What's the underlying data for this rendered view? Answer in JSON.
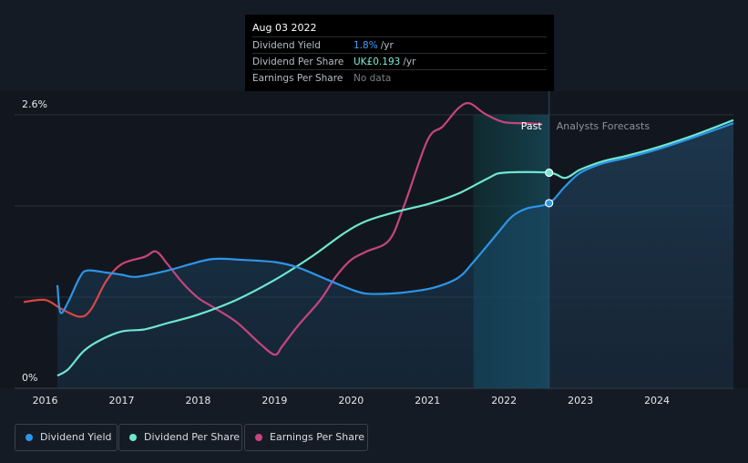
{
  "tooltip": {
    "date": "Aug 03 2022",
    "rows": [
      {
        "label": "Dividend Yield",
        "value": "1.8%",
        "unit": "/yr",
        "color": "#3aa0ff"
      },
      {
        "label": "Dividend Per Share",
        "value": "UK£0.193",
        "unit": "/yr",
        "color": "#7df0d6"
      },
      {
        "label": "Earnings Per Share",
        "value": "No data",
        "unit": "",
        "color": "#7a7f88"
      }
    ]
  },
  "legend": [
    {
      "label": "Dividend Yield",
      "color": "#2d95e8"
    },
    {
      "label": "Dividend Per Share",
      "color": "#6fe7cf"
    },
    {
      "label": "Earnings Per Share",
      "color": "#c7447f"
    }
  ],
  "chart_data": {
    "type": "line",
    "y_axis": {
      "min_label": "0%",
      "max_label": "2.6%",
      "ylim": [
        0,
        2.6
      ]
    },
    "x_ticks": [
      "2016",
      "2017",
      "2018",
      "2019",
      "2020",
      "2021",
      "2022",
      "2023",
      "2024"
    ],
    "xlim": [
      2015.6,
      2025.0
    ],
    "region_labels": {
      "past": "Past",
      "forecast": "Analysts Forecasts"
    },
    "past_end": 2022.59,
    "highlight_start": 2021.6,
    "series": [
      {
        "name": "Dividend Yield",
        "color": "#2d95e8",
        "points": [
          [
            2016.16,
            0.98
          ],
          [
            2016.2,
            0.72
          ],
          [
            2016.3,
            0.82
          ],
          [
            2016.45,
            1.05
          ],
          [
            2016.55,
            1.12
          ],
          [
            2016.8,
            1.1
          ],
          [
            2017.0,
            1.08
          ],
          [
            2017.2,
            1.06
          ],
          [
            2017.6,
            1.12
          ],
          [
            2017.9,
            1.18
          ],
          [
            2018.2,
            1.23
          ],
          [
            2018.6,
            1.22
          ],
          [
            2019.0,
            1.2
          ],
          [
            2019.3,
            1.15
          ],
          [
            2019.7,
            1.03
          ],
          [
            2020.0,
            0.94
          ],
          [
            2020.2,
            0.9
          ],
          [
            2020.5,
            0.9
          ],
          [
            2020.8,
            0.92
          ],
          [
            2021.1,
            0.96
          ],
          [
            2021.4,
            1.05
          ],
          [
            2021.6,
            1.2
          ],
          [
            2021.9,
            1.46
          ],
          [
            2022.1,
            1.63
          ],
          [
            2022.3,
            1.71
          ],
          [
            2022.59,
            1.76
          ],
          [
            2022.8,
            1.92
          ],
          [
            2023.0,
            2.05
          ],
          [
            2023.3,
            2.14
          ],
          [
            2023.6,
            2.19
          ],
          [
            2024.0,
            2.27
          ],
          [
            2024.5,
            2.39
          ],
          [
            2025.0,
            2.52
          ]
        ]
      },
      {
        "name": "Dividend Per Share",
        "color": "#6fe7cf",
        "points": [
          [
            2016.16,
            0.12
          ],
          [
            2016.3,
            0.18
          ],
          [
            2016.5,
            0.35
          ],
          [
            2016.7,
            0.45
          ],
          [
            2017.0,
            0.54
          ],
          [
            2017.3,
            0.56
          ],
          [
            2017.6,
            0.62
          ],
          [
            2018.0,
            0.7
          ],
          [
            2018.5,
            0.84
          ],
          [
            2019.0,
            1.03
          ],
          [
            2019.5,
            1.26
          ],
          [
            2019.9,
            1.47
          ],
          [
            2020.2,
            1.59
          ],
          [
            2020.6,
            1.68
          ],
          [
            2021.0,
            1.75
          ],
          [
            2021.4,
            1.85
          ],
          [
            2021.8,
            2.0
          ],
          [
            2022.0,
            2.05
          ],
          [
            2022.59,
            2.05
          ],
          [
            2022.8,
            2.0
          ],
          [
            2023.0,
            2.08
          ],
          [
            2023.3,
            2.16
          ],
          [
            2023.6,
            2.21
          ],
          [
            2024.0,
            2.29
          ],
          [
            2024.5,
            2.41
          ],
          [
            2025.0,
            2.55
          ]
        ]
      },
      {
        "name": "Earnings Per Share",
        "color": "#c7447f",
        "points": [
          [
            2015.72,
            0.82
          ],
          [
            2016.0,
            0.84
          ],
          [
            2016.2,
            0.76
          ],
          [
            2016.45,
            0.68
          ],
          [
            2016.6,
            0.75
          ],
          [
            2016.8,
            1.02
          ],
          [
            2017.0,
            1.18
          ],
          [
            2017.3,
            1.25
          ],
          [
            2017.45,
            1.3
          ],
          [
            2017.6,
            1.18
          ],
          [
            2017.8,
            1.0
          ],
          [
            2018.0,
            0.86
          ],
          [
            2018.2,
            0.77
          ],
          [
            2018.5,
            0.63
          ],
          [
            2018.8,
            0.43
          ],
          [
            2019.0,
            0.32
          ],
          [
            2019.1,
            0.4
          ],
          [
            2019.3,
            0.59
          ],
          [
            2019.6,
            0.84
          ],
          [
            2019.8,
            1.06
          ],
          [
            2020.0,
            1.22
          ],
          [
            2020.2,
            1.3
          ],
          [
            2020.5,
            1.41
          ],
          [
            2020.7,
            1.75
          ],
          [
            2021.0,
            2.36
          ],
          [
            2021.2,
            2.49
          ],
          [
            2021.4,
            2.66
          ],
          [
            2021.55,
            2.71
          ],
          [
            2021.75,
            2.61
          ],
          [
            2022.0,
            2.53
          ],
          [
            2022.3,
            2.52
          ],
          [
            2022.5,
            2.51
          ]
        ]
      }
    ],
    "markers": [
      {
        "series": "Dividend Yield",
        "x": 2022.59,
        "y": 1.76
      },
      {
        "series": "Dividend Per Share",
        "x": 2022.59,
        "y": 2.05
      }
    ]
  }
}
